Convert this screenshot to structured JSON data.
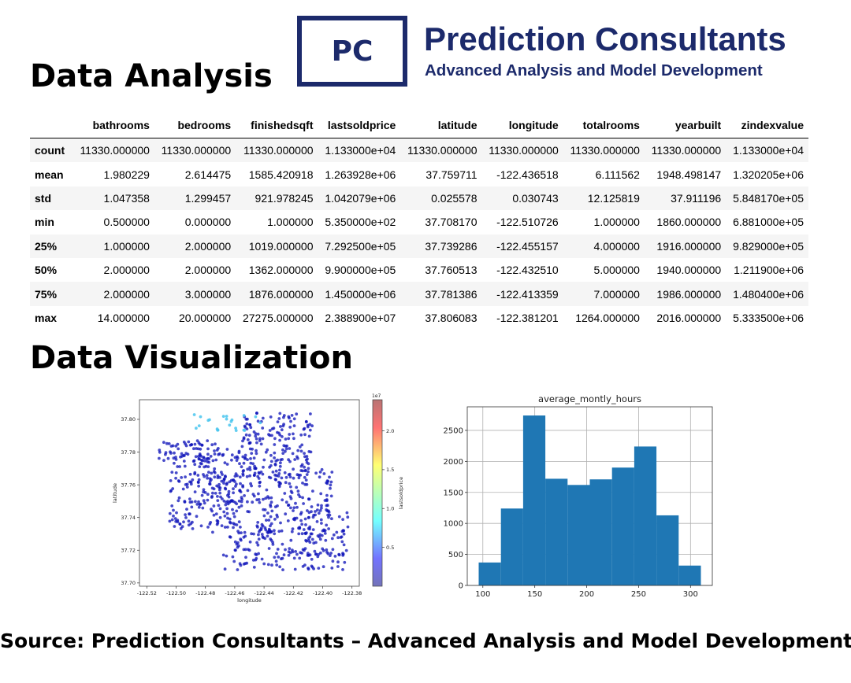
{
  "header": {
    "title": "Data Analysis",
    "logo_text": "PC",
    "company_name": "Prediction Consultants",
    "company_tagline": "Advanced Analysis and Model Development"
  },
  "table": {
    "columns": [
      "bathrooms",
      "bedrooms",
      "finishedsqft",
      "lastsoldprice",
      "latitude",
      "longitude",
      "totalrooms",
      "yearbuilt",
      "zindexvalue"
    ],
    "rows": [
      {
        "label": "count",
        "values": [
          "11330.000000",
          "11330.000000",
          "11330.000000",
          "1.133000e+04",
          "11330.000000",
          "11330.000000",
          "11330.000000",
          "11330.000000",
          "1.133000e+04"
        ]
      },
      {
        "label": "mean",
        "values": [
          "1.980229",
          "2.614475",
          "1585.420918",
          "1.263928e+06",
          "37.759711",
          "-122.436518",
          "6.111562",
          "1948.498147",
          "1.320205e+06"
        ]
      },
      {
        "label": "std",
        "values": [
          "1.047358",
          "1.299457",
          "921.978245",
          "1.042079e+06",
          "0.025578",
          "0.030743",
          "12.125819",
          "37.911196",
          "5.848170e+05"
        ]
      },
      {
        "label": "min",
        "values": [
          "0.500000",
          "0.000000",
          "1.000000",
          "5.350000e+02",
          "37.708170",
          "-122.510726",
          "1.000000",
          "1860.000000",
          "6.881000e+05"
        ]
      },
      {
        "label": "25%",
        "values": [
          "1.000000",
          "2.000000",
          "1019.000000",
          "7.292500e+05",
          "37.739286",
          "-122.455157",
          "4.000000",
          "1916.000000",
          "9.829000e+05"
        ]
      },
      {
        "label": "50%",
        "values": [
          "2.000000",
          "2.000000",
          "1362.000000",
          "9.900000e+05",
          "37.760513",
          "-122.432510",
          "5.000000",
          "1940.000000",
          "1.211900e+06"
        ]
      },
      {
        "label": "75%",
        "values": [
          "2.000000",
          "3.000000",
          "1876.000000",
          "1.450000e+06",
          "37.781386",
          "-122.413359",
          "7.000000",
          "1986.000000",
          "1.480400e+06"
        ]
      },
      {
        "label": "max",
        "values": [
          "14.000000",
          "20.000000",
          "27275.000000",
          "2.388900e+07",
          "37.806083",
          "-122.381201",
          "1264.000000",
          "2016.000000",
          "5.333500e+06"
        ]
      }
    ]
  },
  "visualization": {
    "title": "Data Visualization"
  },
  "footer": {
    "source": "Source: Prediction Consultants – Advanced Analysis and Model Development"
  },
  "chart_data": [
    {
      "type": "scatter",
      "title": "",
      "xlabel": "longitude",
      "ylabel": "latitude",
      "xlim": [
        -122.525,
        -122.375
      ],
      "ylim": [
        37.698,
        37.812
      ],
      "xticks": [
        "-122.52",
        "-122.50",
        "-122.48",
        "-122.46",
        "-122.44",
        "-122.42",
        "-122.40",
        "-122.38"
      ],
      "yticks": [
        "37.70",
        "37.72",
        "37.74",
        "37.76",
        "37.78",
        "37.80"
      ],
      "colorbar": {
        "label": "lastsoldprice",
        "exponent": "1e7",
        "ticks": [
          "0.5",
          "1.0",
          "1.5",
          "2.0"
        ],
        "range": [
          0,
          2.4
        ],
        "colormap": "jet"
      },
      "point_color": "#0b10b8",
      "highlight_color": "#49c6ee",
      "note": "Dense point cloud of San Francisco home locations; nearly all points dark blue (low lastsoldprice), a few light-blue points near the northern edge."
    },
    {
      "type": "bar",
      "title": "average_montly_hours",
      "xlabel": "",
      "ylabel": "",
      "bin_edges": [
        96,
        117.4,
        138.8,
        160.2,
        181.6,
        203,
        224.4,
        245.8,
        267.2,
        288.6,
        310
      ],
      "values": [
        370,
        1240,
        2740,
        1720,
        1620,
        1710,
        1900,
        2240,
        1130,
        320
      ],
      "xlim": [
        85,
        321
      ],
      "ylim": [
        0,
        2880
      ],
      "xticks": [
        100,
        150,
        200,
        250,
        300
      ],
      "yticks": [
        0,
        500,
        1000,
        1500,
        2000,
        2500
      ],
      "grid": true,
      "color": "#1f77b4"
    }
  ]
}
